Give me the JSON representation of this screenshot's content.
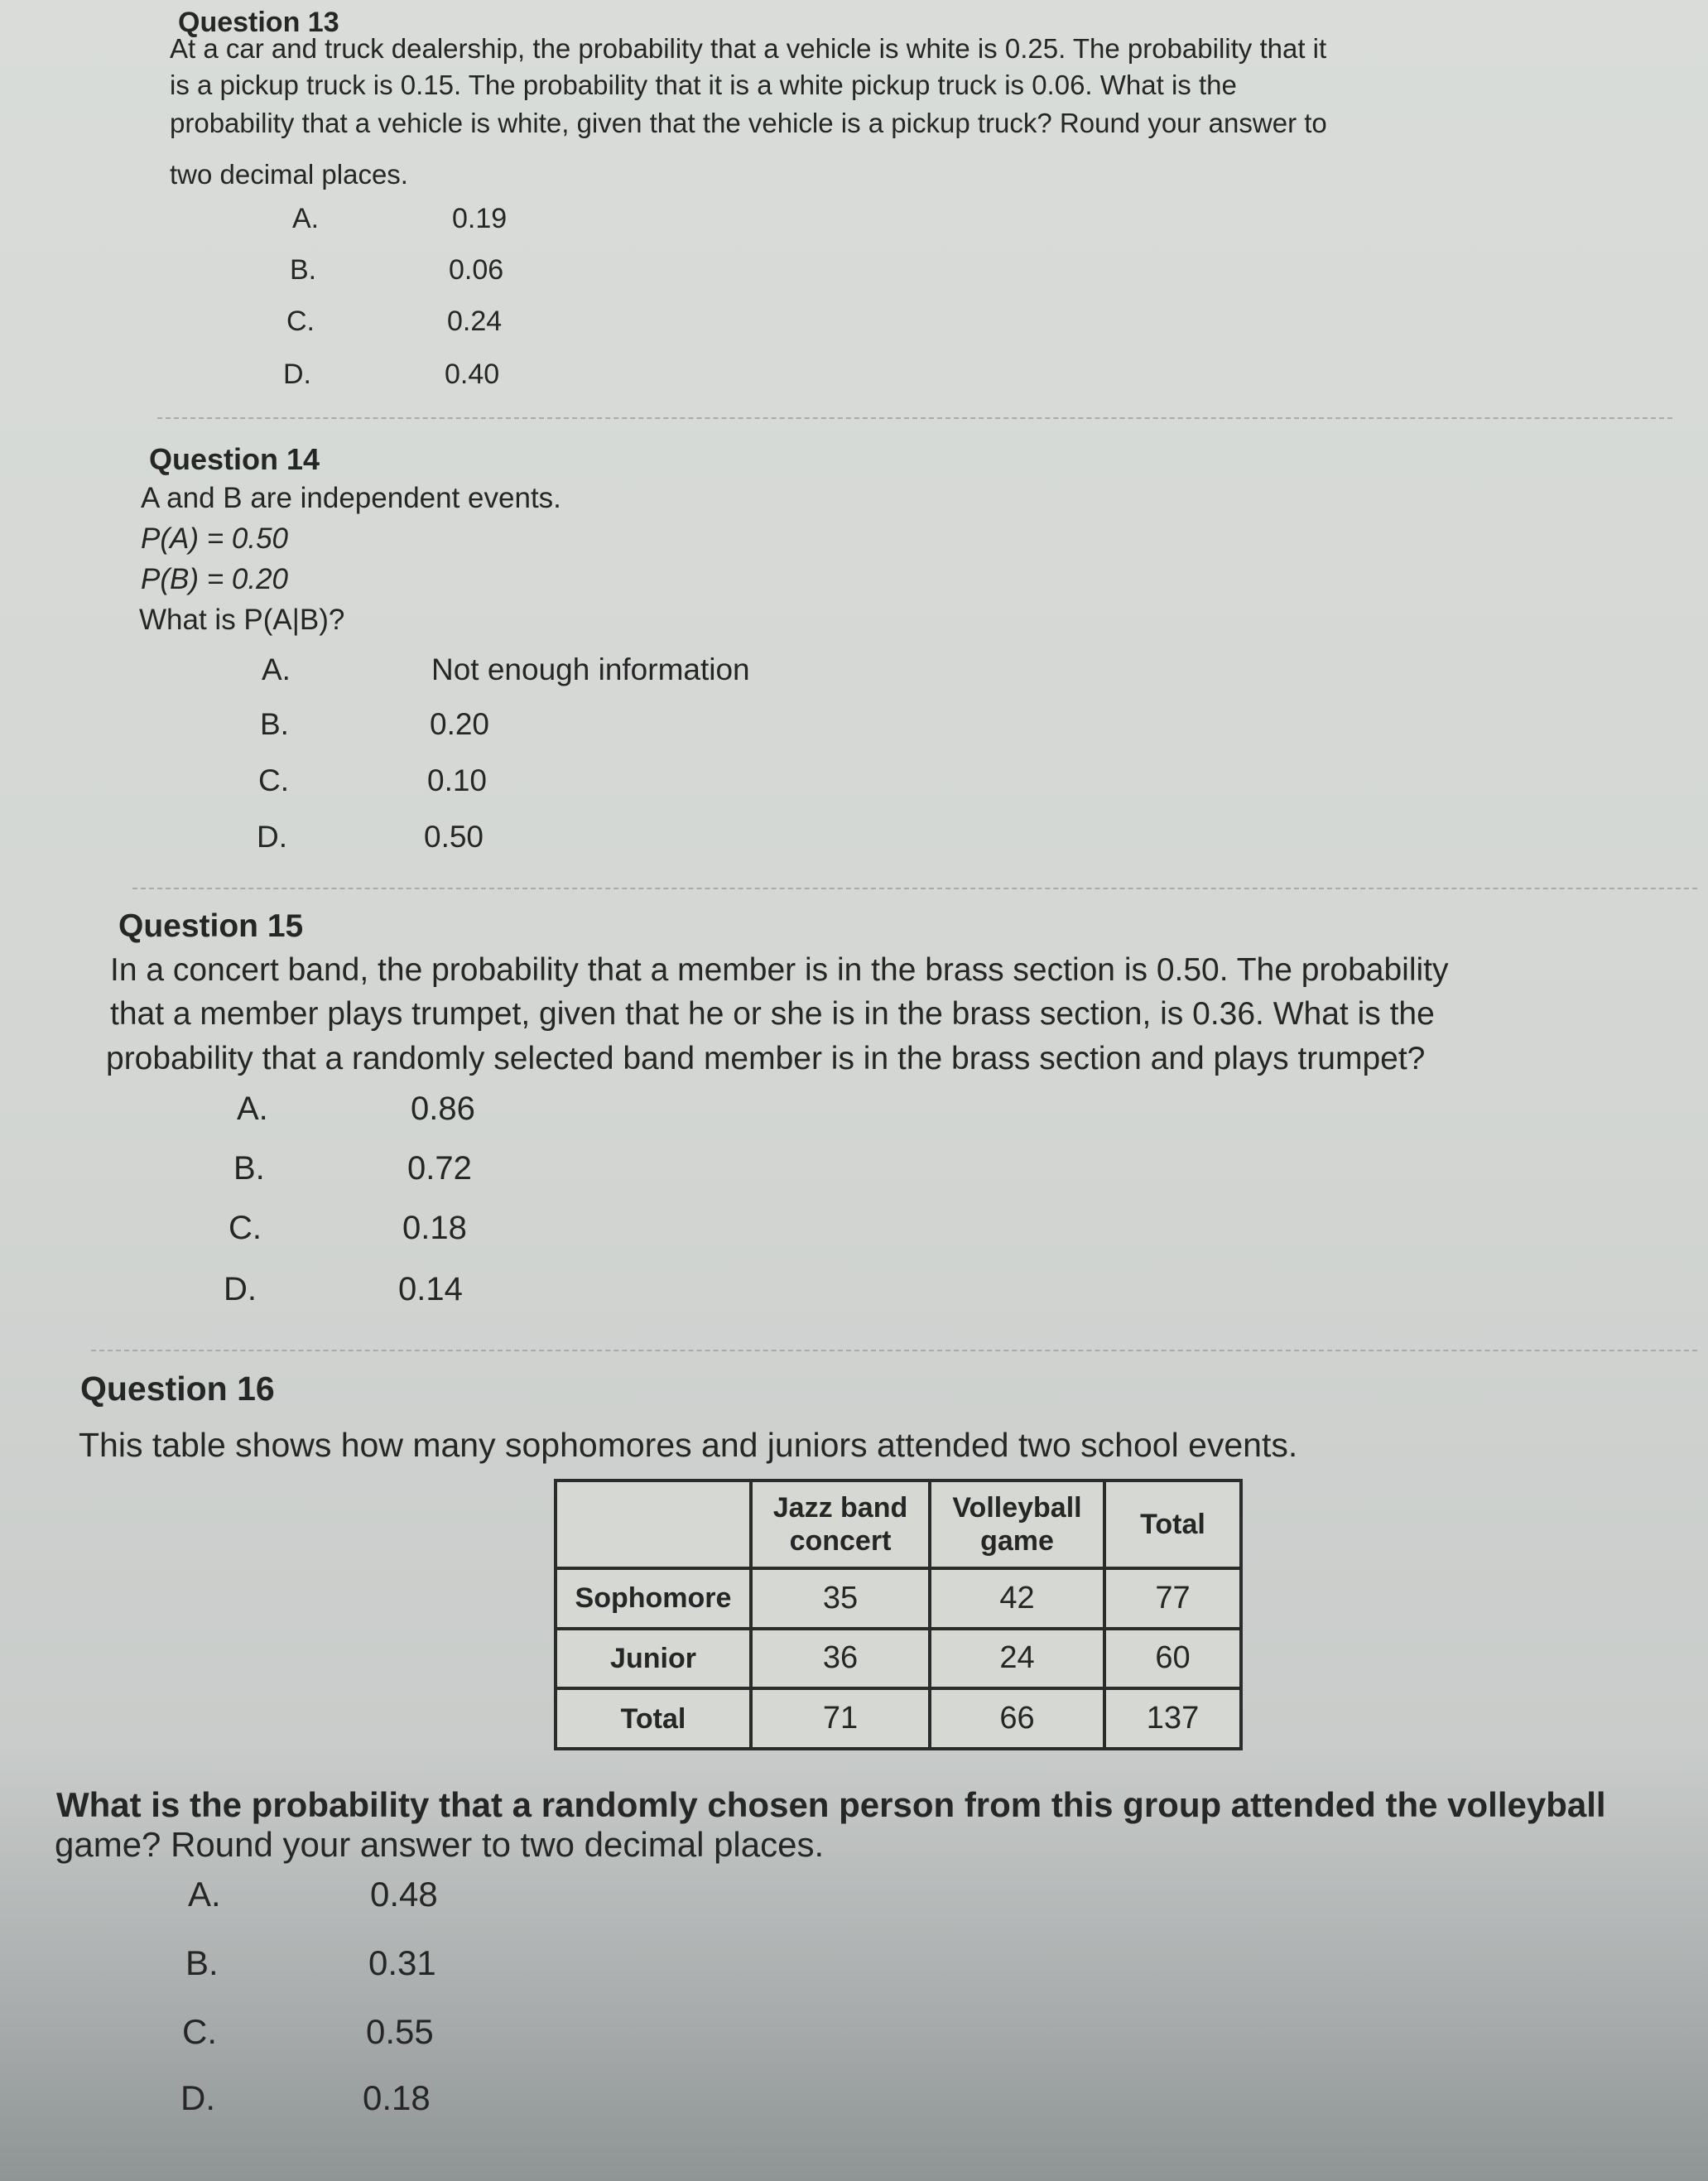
{
  "questions": [
    {
      "title": "Question 13",
      "text": [
        "At a car and truck dealership, the probability that a vehicle is white is 0.25. The probability that it",
        "is a pickup truck is 0.15. The probability that it is a white pickup truck is 0.06. What is the",
        "probability that a vehicle is white, given that the vehicle is a pickup truck? Round your answer to",
        "two decimal places."
      ],
      "options": [
        {
          "letter": "A.",
          "value": "0.19"
        },
        {
          "letter": "B.",
          "value": "0.06"
        },
        {
          "letter": "C.",
          "value": "0.24"
        },
        {
          "letter": "D.",
          "value": "0.40"
        }
      ]
    },
    {
      "title": "Question 14",
      "text": [
        "A and B are independent events.",
        "P(A) = 0.50",
        "P(B) = 0.20",
        "What is P(A|B)?"
      ],
      "options": [
        {
          "letter": "A.",
          "value": "Not enough information"
        },
        {
          "letter": "B.",
          "value": "0.20"
        },
        {
          "letter": "C.",
          "value": "0.10"
        },
        {
          "letter": "D.",
          "value": "0.50"
        }
      ]
    },
    {
      "title": "Question 15",
      "text": [
        "In a concert band, the probability that a member is in the brass section is 0.50. The probability",
        "that a member plays trumpet, given that he or she is in the brass section, is 0.36. What is the",
        "probability that a randomly selected band member is in the brass section and plays trumpet?"
      ],
      "options": [
        {
          "letter": "A.",
          "value": "0.86"
        },
        {
          "letter": "B.",
          "value": "0.72"
        },
        {
          "letter": "C.",
          "value": "0.18"
        },
        {
          "letter": "D.",
          "value": "0.14"
        }
      ]
    },
    {
      "title": "Question 16",
      "text": [
        "This table shows how many sophomores and juniors attended two school events."
      ],
      "table": {
        "headers": [
          "",
          "Jazz band concert",
          "Volleyball game",
          "Total"
        ],
        "rows": [
          [
            "Sophomore",
            "35",
            "42",
            "77"
          ],
          [
            "Junior",
            "36",
            "24",
            "60"
          ],
          [
            "Total",
            "71",
            "66",
            "137"
          ]
        ]
      },
      "text2": [
        "What is the probability that a randomly chosen person from this group attended the volleyball",
        "game? Round your answer to two decimal places."
      ],
      "options": [
        {
          "letter": "A.",
          "value": "0.48"
        },
        {
          "letter": "B.",
          "value": "0.31"
        },
        {
          "letter": "C.",
          "value": "0.55"
        },
        {
          "letter": "D.",
          "value": "0.18"
        }
      ]
    }
  ]
}
